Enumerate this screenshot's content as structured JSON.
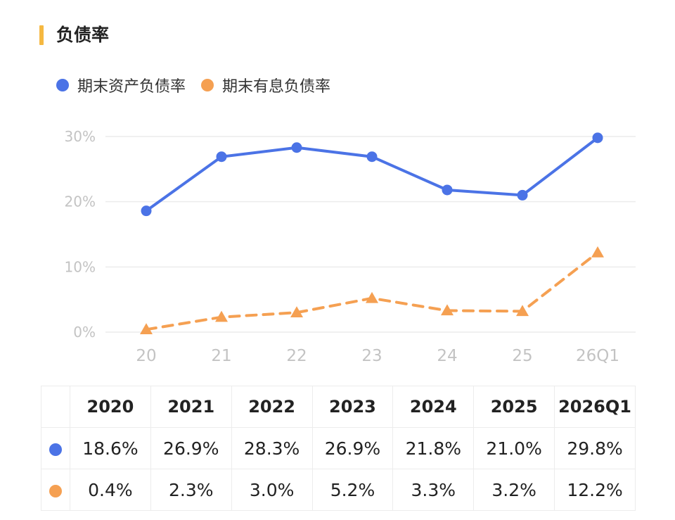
{
  "title": "负债率",
  "colors": {
    "accent": "#f5b841",
    "series1": "#4b73e6",
    "series2": "#f5a052"
  },
  "chart_data": {
    "type": "line",
    "x": [
      "20",
      "21",
      "22",
      "23",
      "24",
      "25",
      "26Q1"
    ],
    "yticks": [
      "0%",
      "10%",
      "20%",
      "30%"
    ],
    "ylim": [
      0,
      30
    ],
    "grid": true,
    "legend_position": "top-left",
    "series": [
      {
        "name": "期末资产负债率",
        "values": [
          18.6,
          26.9,
          28.3,
          26.9,
          21.8,
          21.0,
          29.8
        ],
        "marker": "circle",
        "style": "solid"
      },
      {
        "name": "期末有息负债率",
        "values": [
          0.4,
          2.3,
          3.0,
          5.2,
          3.3,
          3.2,
          12.2
        ],
        "marker": "triangle",
        "style": "dashed"
      }
    ]
  },
  "table": {
    "headers": [
      "2020",
      "2021",
      "2022",
      "2023",
      "2024",
      "2025",
      "2026Q1"
    ],
    "rows": [
      [
        "18.6%",
        "26.9%",
        "28.3%",
        "26.9%",
        "21.8%",
        "21.0%",
        "29.8%"
      ],
      [
        "0.4%",
        "2.3%",
        "3.0%",
        "5.2%",
        "3.3%",
        "3.2%",
        "12.2%"
      ]
    ]
  }
}
